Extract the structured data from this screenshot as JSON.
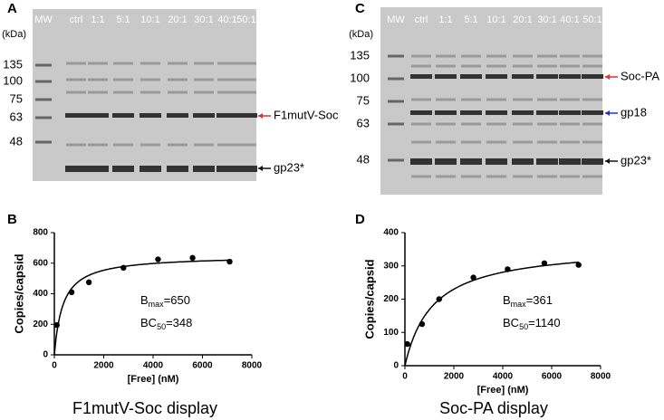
{
  "gels": [
    {
      "panel": "A",
      "unit": "(kDa)",
      "lanes": [
        "MW",
        "ctrl",
        "1:1",
        "5:1",
        "10:1",
        "20:1",
        "30:1",
        "40:1",
        "50:1"
      ],
      "markers": [
        135,
        100,
        75,
        63,
        48
      ],
      "bands": [
        {
          "text": "F1mutV-Soc",
          "color": "#e0302a"
        },
        {
          "text": "gp23*",
          "color": "#111111"
        }
      ]
    },
    {
      "panel": "C",
      "unit": "(kDa)",
      "lanes": [
        "MW",
        "ctrl",
        "1:1",
        "5:1",
        "10:1",
        "20:1",
        "30:1",
        "40:1",
        "50:1"
      ],
      "markers": [
        135,
        100,
        75,
        63,
        48
      ],
      "bands": [
        {
          "text": "Soc-PA",
          "color": "#e0302a"
        },
        {
          "text": "gp18",
          "color": "#2233cc"
        },
        {
          "text": "gp23*",
          "color": "#111111"
        }
      ]
    }
  ],
  "chart_data": [
    {
      "type": "scatter",
      "panel": "B",
      "caption": "F1mutV-Soc display",
      "x_label": "[Free] (nM)",
      "y_label": "Copies/capsid",
      "x": [
        100,
        700,
        1400,
        2800,
        4200,
        5600,
        7100
      ],
      "values": [
        195,
        410,
        475,
        570,
        625,
        635,
        610
      ],
      "color": "#000000",
      "xlim": [
        0,
        8000
      ],
      "xticks": [
        0,
        2000,
        4000,
        6000,
        8000
      ],
      "ylim": [
        0,
        800
      ],
      "yticks": [
        0,
        200,
        400,
        600,
        800
      ],
      "fit": {
        "bmax": 650,
        "bc50": 348
      },
      "annotations": [
        {
          "text": "B",
          "sub": "max",
          "suffix": "=650"
        },
        {
          "text": "BC",
          "sub": "50",
          "suffix": "=348"
        }
      ]
    },
    {
      "type": "scatter",
      "panel": "D",
      "caption": "Soc-PA display",
      "x_label": "[Free] (nM)",
      "y_label": "Copies/capsid",
      "x": [
        100,
        700,
        1400,
        2800,
        4200,
        5700,
        7100
      ],
      "values": [
        65,
        125,
        200,
        265,
        290,
        308,
        303
      ],
      "color": "#000000",
      "xlim": [
        0,
        8000
      ],
      "xticks": [
        0,
        2000,
        4000,
        6000,
        8000
      ],
      "ylim": [
        0,
        400
      ],
      "yticks": [
        0,
        100,
        200,
        300,
        400
      ],
      "fit": {
        "bmax": 361,
        "bc50": 1140
      },
      "annotations": [
        {
          "text": "B",
          "sub": "max",
          "suffix": "=361"
        },
        {
          "text": "BC",
          "sub": "50",
          "suffix": "=1140"
        }
      ]
    }
  ]
}
